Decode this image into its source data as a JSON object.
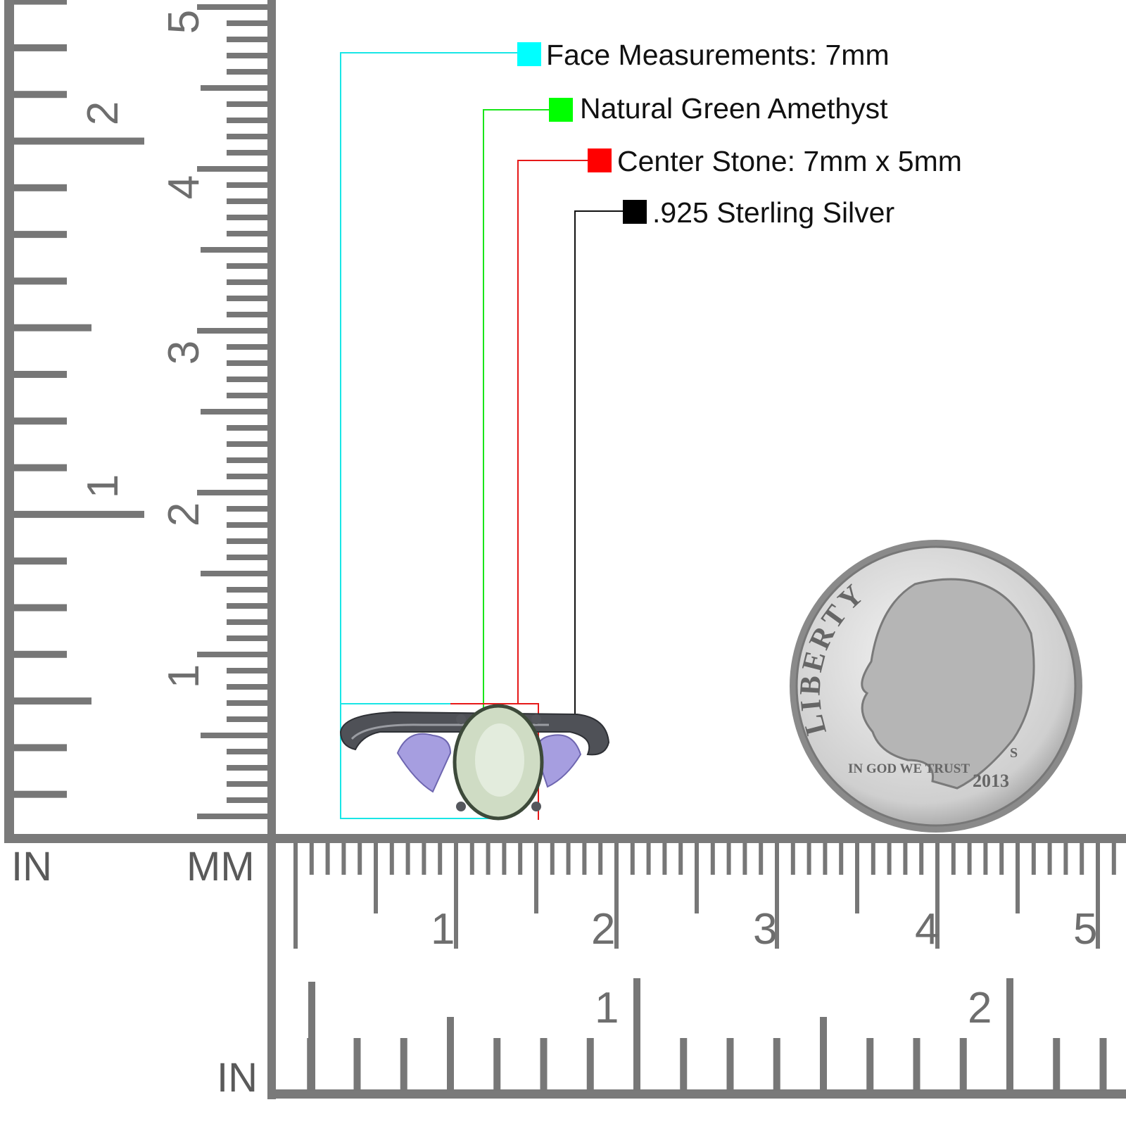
{
  "legend": [
    {
      "label": "Face Measurements: 7mm",
      "color": "#00ffff"
    },
    {
      "label": "Natural Green Amethyst",
      "color": "#00ff00"
    },
    {
      "label": "Center Stone: 7mm x 5mm",
      "color": "#ff0000"
    },
    {
      "label": ".925 Sterling Silver",
      "color": "#000000"
    }
  ],
  "rulers": {
    "unit_left_in": "IN",
    "unit_left_mm": "MM",
    "unit_bottom_in": "IN",
    "vertical_cm_labels": [
      "1",
      "2",
      "3",
      "4",
      "5"
    ],
    "vertical_in_labels": [
      "1",
      "2"
    ],
    "horizontal_cm_labels": [
      "1",
      "2",
      "3",
      "4",
      "5"
    ],
    "horizontal_in_labels": [
      "1",
      "2"
    ],
    "tick_color": "#777777"
  },
  "coin": {
    "top_text": "LIBERTY",
    "motto": "IN GOD WE TRUST",
    "year": "2013",
    "mint_mark": "S"
  }
}
